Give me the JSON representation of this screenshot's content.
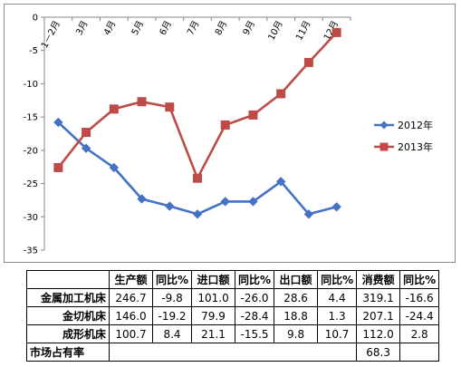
{
  "chart_data": {
    "type": "line",
    "categories": [
      "1－2月",
      "3月",
      "4月",
      "5月",
      "6月",
      "7月",
      "8月",
      "9月",
      "10月",
      "11月",
      "12月"
    ],
    "series": [
      {
        "name": "2012年",
        "color": "#4472c4",
        "marker": "diamond",
        "values": [
          -15.8,
          -19.7,
          -22.6,
          -27.3,
          -28.4,
          -29.6,
          -27.7,
          -27.7,
          -24.7,
          -29.6,
          -28.5
        ]
      },
      {
        "name": "2013年",
        "color": "#be4b48",
        "marker": "square",
        "values": [
          -22.6,
          -17.3,
          -13.8,
          -12.7,
          -13.5,
          -24.2,
          -16.2,
          -14.7,
          -11.5,
          -6.8,
          -2.3
        ]
      }
    ],
    "ylim": [
      -35,
      0
    ],
    "yticks": [
      0,
      -5,
      -10,
      -15,
      -20,
      -25,
      -30,
      -35
    ],
    "legend_position": "right",
    "grid": false
  },
  "table": {
    "headers": [
      "",
      "生产额",
      "同比%",
      "进口额",
      "同比%",
      "出口额",
      "同比%",
      "消费额",
      "同比%"
    ],
    "rows": [
      [
        "金属加工机床",
        "246.7",
        "-9.8",
        "101.0",
        "-26.0",
        "28.6",
        "4.4",
        "319.1",
        "-16.6"
      ],
      [
        "金切机床",
        "146.0",
        "-19.2",
        "79.9",
        "-28.4",
        "18.8",
        "1.3",
        "207.1",
        "-24.4"
      ],
      [
        "成形机床",
        "100.7",
        "8.4",
        "21.1",
        "-15.5",
        "9.8",
        "10.7",
        "112.0",
        "2.8"
      ],
      [
        "市场占有率",
        "",
        "",
        "",
        "",
        "",
        "",
        "68.3",
        ""
      ]
    ]
  }
}
